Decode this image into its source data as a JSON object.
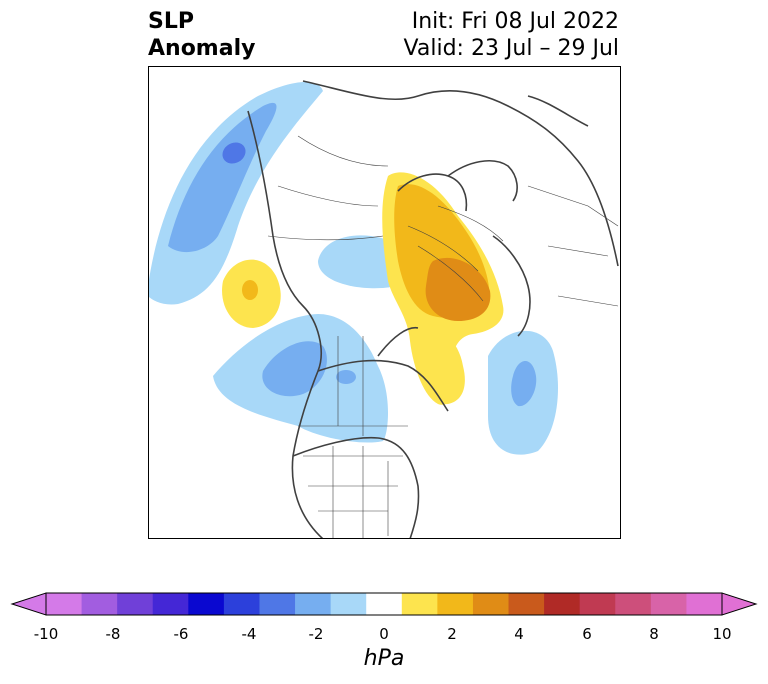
{
  "header": {
    "variable_line1": "SLP",
    "variable_line2": "Anomaly",
    "init_text": "Init: Fri 08 Jul 2022",
    "valid_text": "Valid: 23 Jul – 29 Jul"
  },
  "map": {
    "projection": "north-polar-stereographic",
    "features": [
      "coastlines",
      "country-borders",
      "state-province-borders"
    ],
    "anomaly_regions": [
      {
        "region": "North Pacific (west of Alaska)",
        "sign": "negative",
        "peak_hPa": -3
      },
      {
        "region": "Arctic / Beaufort",
        "sign": "negative",
        "peak_hPa": -1
      },
      {
        "region": "Central Canada",
        "sign": "negative",
        "peak_hPa": -2
      },
      {
        "region": "Northeast Pacific",
        "sign": "negative",
        "peak_hPa": -2
      },
      {
        "region": "North Atlantic",
        "sign": "negative",
        "peak_hPa": -2
      },
      {
        "region": "Siberia",
        "sign": "positive",
        "peak_hPa": 2
      },
      {
        "region": "Scandinavia / Northern Europe",
        "sign": "positive",
        "peak_hPa": 3
      },
      {
        "region": "Greenland",
        "sign": "positive",
        "peak_hPa": 1
      }
    ]
  },
  "colorbar": {
    "unit": "hPa",
    "tick_labels": [
      "-10",
      "-8",
      "-6",
      "-4",
      "-2",
      "0",
      "2",
      "4",
      "6",
      "8",
      "10"
    ],
    "extend": "both",
    "levels": [
      -10,
      -9,
      -8,
      -7,
      -6,
      -5,
      -4,
      -3,
      -2,
      -1,
      1,
      2,
      3,
      4,
      5,
      6,
      7,
      8,
      9,
      10
    ],
    "colors": [
      "#d47ae8",
      "#a25de0",
      "#7040d8",
      "#4427d6",
      "#0a08d0",
      "#2c40db",
      "#4f77e6",
      "#76aef0",
      "#a8d8f8",
      "#ffffff",
      "#fde44e",
      "#f2b81a",
      "#e08c16",
      "#c95a1c",
      "#b02a26",
      "#c03a52",
      "#cd4f7b",
      "#d863a8",
      "#e070d4"
    ]
  }
}
